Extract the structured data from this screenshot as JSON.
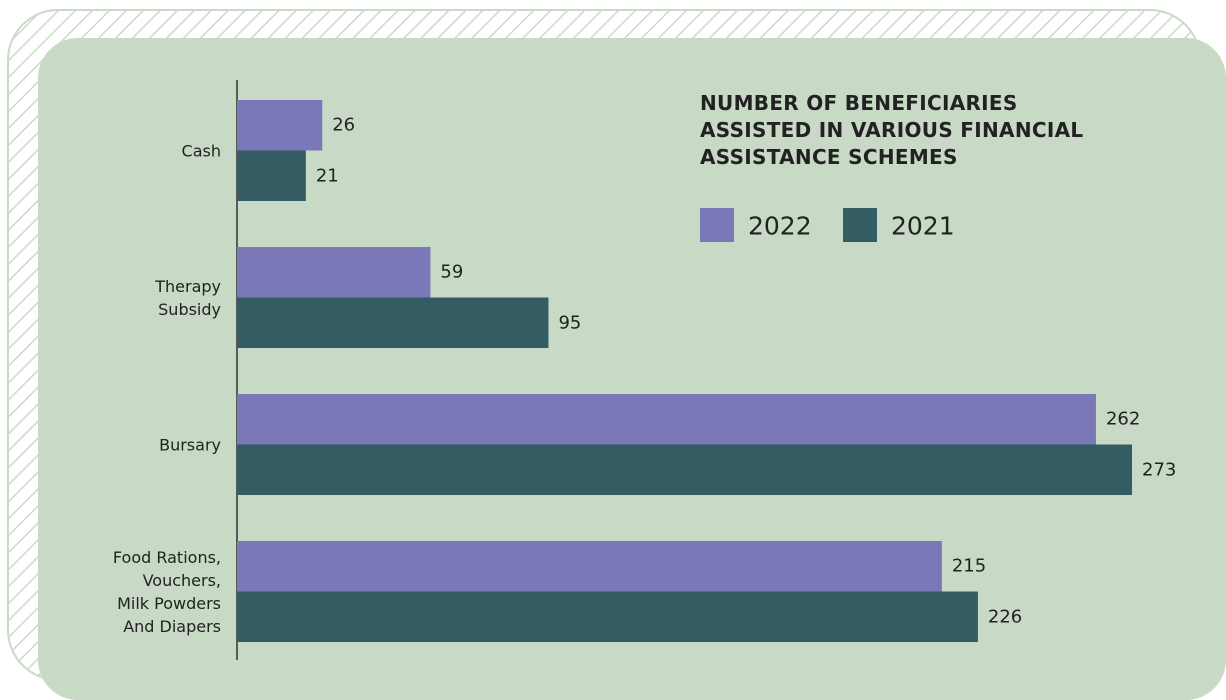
{
  "chart_data": {
    "type": "barh",
    "title": "NUMBER OF BENEFICIARIES\nASSISTED IN VARIOUS FINANCIAL\nASSISTANCE SCHEMES",
    "categories": [
      "Cash",
      "Therapy\nSubsidy",
      "Bursary",
      "Food Rations,\nVouchers,\nMilk Powders\nAnd Diapers"
    ],
    "series": [
      {
        "name": "2022",
        "color": "#7b78b8",
        "values": [
          26,
          59,
          262,
          215
        ]
      },
      {
        "name": "2021",
        "color": "#335c63",
        "values": [
          21,
          95,
          273,
          226
        ]
      }
    ]
  }
}
